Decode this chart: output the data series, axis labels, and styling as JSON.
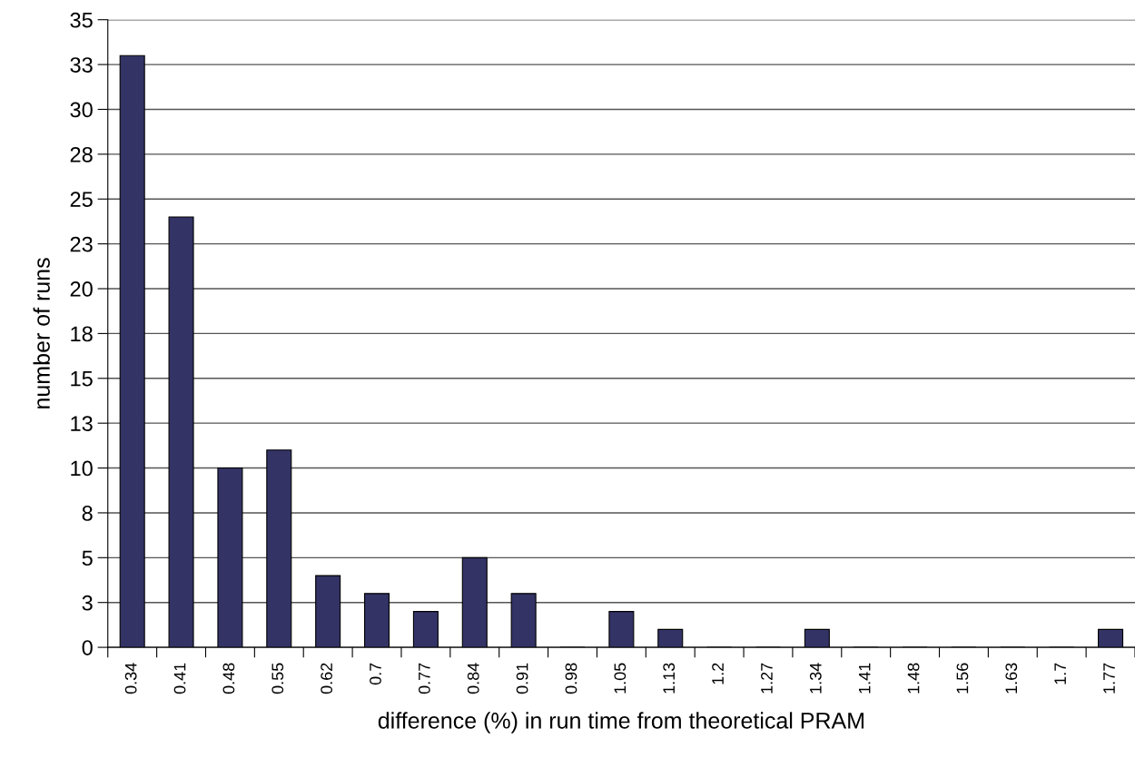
{
  "chart_data": {
    "type": "bar",
    "xlabel": "difference (%) in run time from theoretical PRAM",
    "ylabel": "number of runs",
    "categories": [
      "0.34",
      "0.41",
      "0.48",
      "0.55",
      "0.62",
      "0.7",
      "0.77",
      "0.84",
      "0.91",
      "0.98",
      "1.05",
      "1.13",
      "1.2",
      "1.27",
      "1.34",
      "1.41",
      "1.48",
      "1.56",
      "1.63",
      "1.7",
      "1.77"
    ],
    "values": [
      33,
      24,
      10,
      11,
      4,
      3,
      2,
      5,
      3,
      0,
      2,
      1,
      0,
      0,
      1,
      0,
      0,
      0,
      0,
      0,
      1
    ],
    "color": "#333366",
    "ylim": [
      0,
      35
    ],
    "yticks": [
      0,
      {
        "value": 2.5,
        "label": "3"
      },
      5,
      {
        "value": 7.5,
        "label": "8"
      },
      10,
      {
        "value": 12.5,
        "label": "13"
      },
      15,
      {
        "value": 17.5,
        "label": "18"
      },
      20,
      {
        "value": 22.5,
        "label": "23"
      },
      25,
      {
        "value": 27.5,
        "label": "28"
      },
      30,
      {
        "value": 32.5,
        "label": "33"
      },
      35
    ],
    "grid": "y",
    "legend": false
  }
}
